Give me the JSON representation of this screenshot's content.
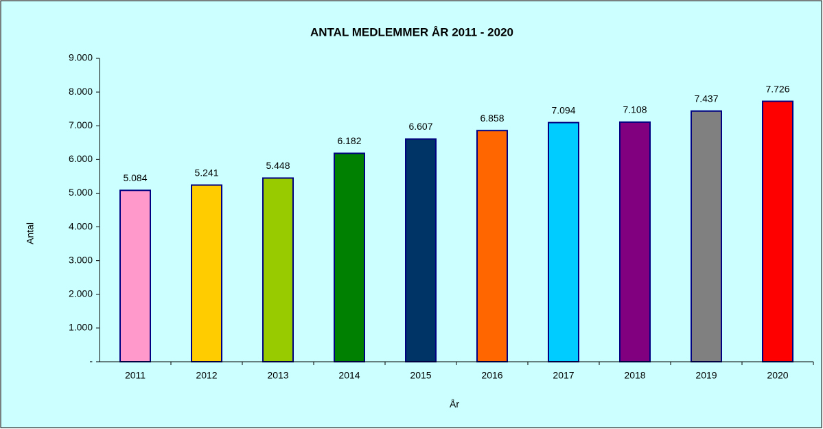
{
  "chart_data": {
    "type": "bar",
    "title": "ANTAL MEDLEMMER ÅR 2011 - 2020",
    "x_label": "År",
    "y_label": "Antal",
    "categories": [
      "2011",
      "2012",
      "2013",
      "2014",
      "2015",
      "2016",
      "2017",
      "2018",
      "2019",
      "2020"
    ],
    "values": [
      5084,
      5241,
      5448,
      6182,
      6607,
      6858,
      7094,
      7108,
      7437,
      7726
    ],
    "value_labels": [
      "5.084",
      "5.241",
      "5.448",
      "6.182",
      "6.607",
      "6.858",
      "7.094",
      "7.108",
      "7.437",
      "7.726"
    ],
    "colors": [
      "#ff99cc",
      "#ffcc00",
      "#99cc00",
      "#008000",
      "#003366",
      "#ff6600",
      "#00ccff",
      "#800080",
      "#808080",
      "#ff0000"
    ],
    "ylim": [
      0,
      9000
    ],
    "yticks": [
      {
        "value": 0,
        "label": "-"
      },
      {
        "value": 1000,
        "label": "1.000"
      },
      {
        "value": 2000,
        "label": "2.000"
      },
      {
        "value": 3000,
        "label": "3.000"
      },
      {
        "value": 4000,
        "label": "4.000"
      },
      {
        "value": 5000,
        "label": "5.000"
      },
      {
        "value": 6000,
        "label": "6.000"
      },
      {
        "value": 7000,
        "label": "7.000"
      },
      {
        "value": 8000,
        "label": "8.000"
      },
      {
        "value": 9000,
        "label": "9.000"
      }
    ],
    "grid": false
  }
}
